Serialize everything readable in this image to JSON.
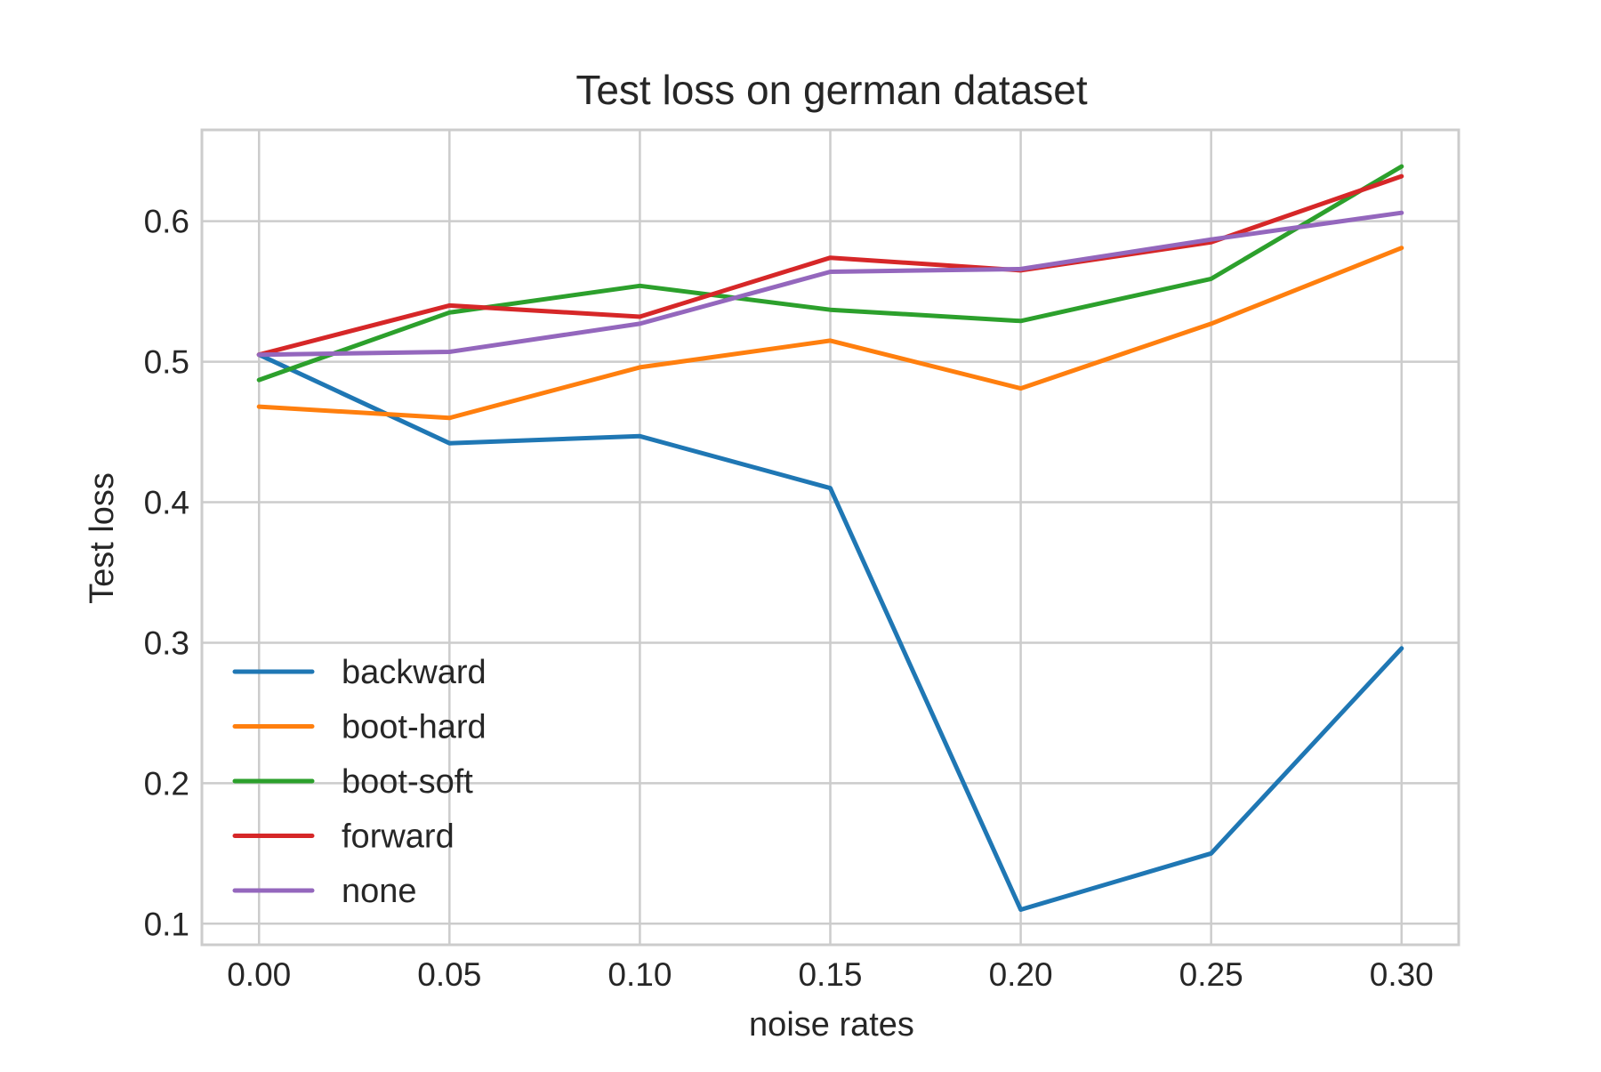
{
  "chart_data": {
    "type": "line",
    "title": "Test loss on german dataset",
    "xlabel": "noise rates",
    "ylabel": "Test loss",
    "x": [
      0.0,
      0.05,
      0.1,
      0.15,
      0.2,
      0.25,
      0.3
    ],
    "xtick_labels": [
      "0.00",
      "0.05",
      "0.10",
      "0.15",
      "0.20",
      "0.25",
      "0.30"
    ],
    "ytick_values": [
      0.1,
      0.2,
      0.3,
      0.4,
      0.5,
      0.6
    ],
    "ytick_labels": [
      "0.1",
      "0.2",
      "0.3",
      "0.4",
      "0.5",
      "0.6"
    ],
    "xlim": [
      -0.015,
      0.315
    ],
    "ylim": [
      0.085,
      0.665
    ],
    "grid": true,
    "legend_position": "lower-left",
    "series": [
      {
        "name": "backward",
        "color": "#1f77b4",
        "values": [
          0.505,
          0.442,
          0.447,
          0.41,
          0.11,
          0.15,
          0.296
        ]
      },
      {
        "name": "boot-hard",
        "color": "#ff7f0e",
        "values": [
          0.468,
          0.46,
          0.496,
          0.515,
          0.481,
          0.527,
          0.581
        ]
      },
      {
        "name": "boot-soft",
        "color": "#2ca02c",
        "values": [
          0.487,
          0.535,
          0.554,
          0.537,
          0.529,
          0.559,
          0.639
        ]
      },
      {
        "name": "forward",
        "color": "#d62728",
        "values": [
          0.505,
          0.54,
          0.532,
          0.574,
          0.565,
          0.585,
          0.632
        ]
      },
      {
        "name": "none",
        "color": "#9467bd",
        "values": [
          0.505,
          0.507,
          0.527,
          0.564,
          0.566,
          0.587,
          0.606
        ]
      }
    ]
  }
}
